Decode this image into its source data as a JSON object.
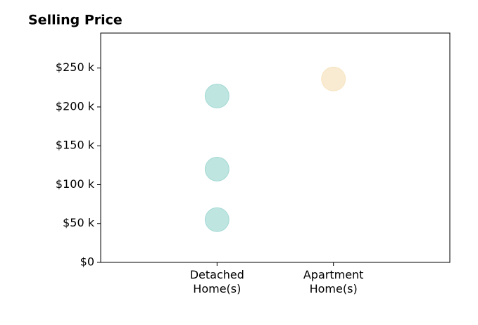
{
  "chart_data": {
    "type": "scatter",
    "title": "Selling Price",
    "categories": [
      null,
      "Detached\nHome(s)",
      "Apartment\nHome(s)",
      null
    ],
    "series": [
      {
        "color": "#80cbc4",
        "values": [
          214,
          120,
          55
        ]
      },
      {
        "color": "#f3d8a6",
        "values": [
          236
        ]
      }
    ],
    "ylim": [
      0,
      295
    ],
    "yticks": [
      {
        "value": 0,
        "label": "$0"
      },
      {
        "value": 50,
        "label": "$50 k"
      },
      {
        "value": 100,
        "label": "$100 k"
      },
      {
        "value": 150,
        "label": "$150 k"
      },
      {
        "value": 200,
        "label": "$200 k"
      },
      {
        "value": 250,
        "label": "$250 k"
      }
    ],
    "grid": false
  }
}
